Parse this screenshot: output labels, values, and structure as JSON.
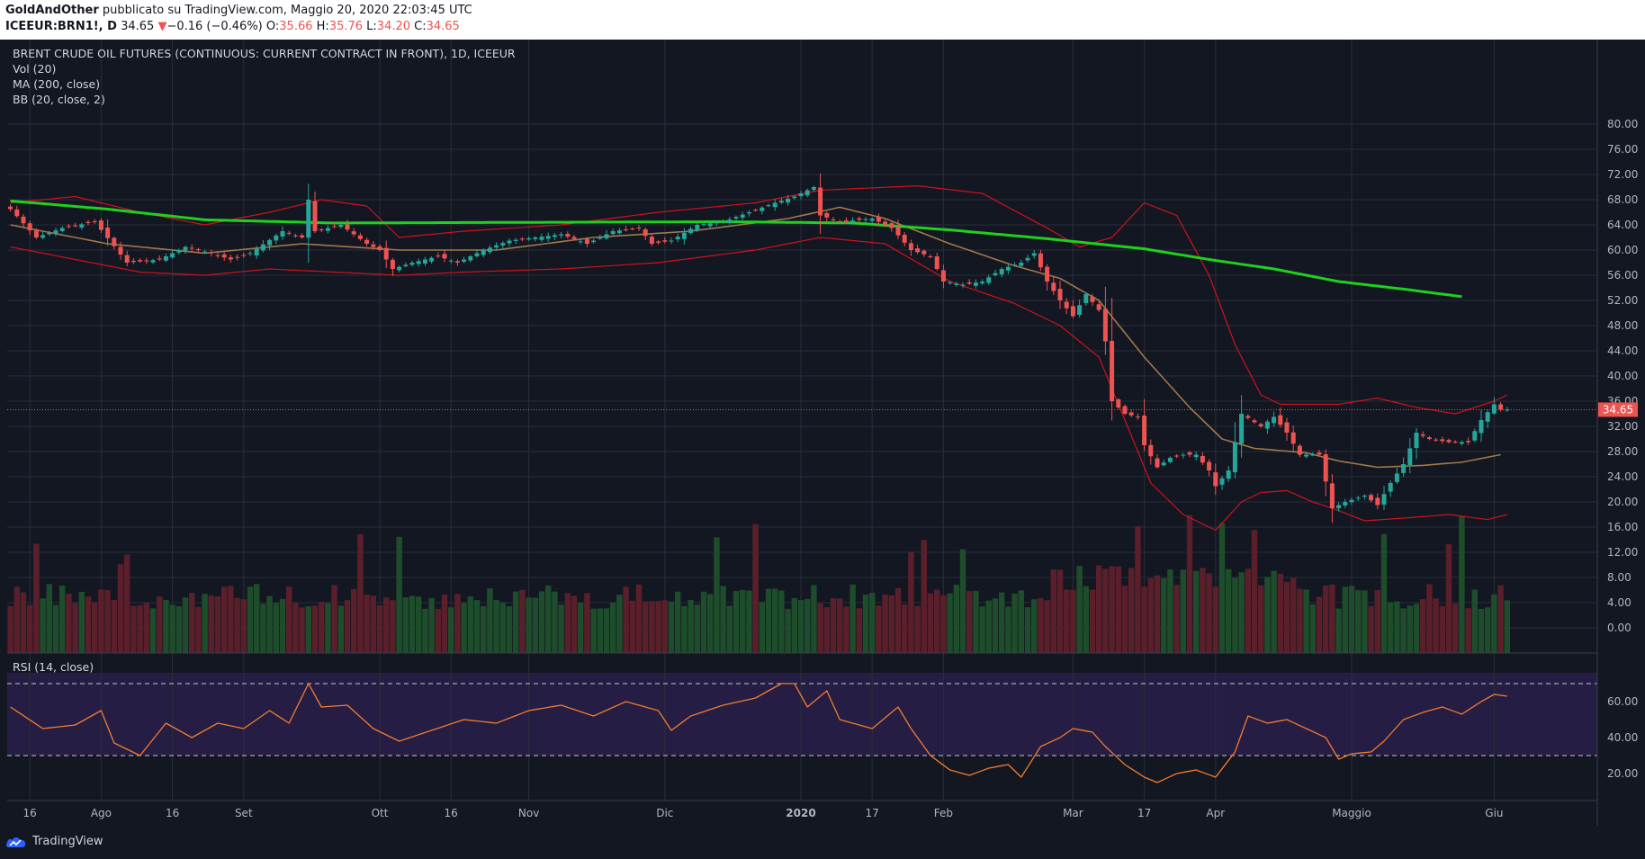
{
  "header": {
    "author": "GoldAndOther",
    "published_text": "pubblicato su TradingView.com, Maggio 20, 2020 22:03:45 UTC",
    "symbol": "ICEEUR:BRN1!, D",
    "last": "34.65",
    "change_arrow": "▼",
    "change": "−0.16 (−0.46%)",
    "ohlc_o_label": "O:",
    "ohlc_o": "35.66",
    "ohlc_h_label": "H:",
    "ohlc_h": "35.76",
    "ohlc_l_label": "L:",
    "ohlc_l": "34.20",
    "ohlc_c_label": "C:",
    "ohlc_c": "34.65"
  },
  "legend": {
    "title": "BRENT CRUDE OIL FUTURES (CONTINUOUS: CURRENT CONTRACT IN FRONT), 1D, ICEEUR",
    "vol": "Vol (20)",
    "ma": "MA (200, close)",
    "bb": "BB (20, close, 2)",
    "rsi": "RSI (14, close)"
  },
  "footer": {
    "brand": "TradingView"
  },
  "colors": {
    "background": "#131722",
    "up": "#26a69a",
    "down": "#ef5350",
    "ma200": "#1fd01f",
    "bb_basis": "#a0784a",
    "bb_bands": "#d0121b",
    "rsi_line": "#f07c2e",
    "rsi_band": "#2a1f4a",
    "price_label": "#ef5350"
  },
  "chart_data": {
    "type": "candlestick",
    "price_axis": {
      "min": 0,
      "max": 80,
      "ticks": [
        "80.00",
        "76.00",
        "72.00",
        "68.00",
        "64.00",
        "60.00",
        "56.00",
        "52.00",
        "48.00",
        "44.00",
        "40.00",
        "36.00",
        "32.00",
        "28.00",
        "24.00",
        "20.00",
        "16.00",
        "12.00",
        "8.00",
        "4.00",
        "0.00"
      ]
    },
    "last_price_label": "34.65",
    "rsi_axis": {
      "ticks": [
        "60.00",
        "40.00",
        "20.00"
      ],
      "upper_band": 70,
      "lower_band": 30
    },
    "time_labels": [
      {
        "label": "16",
        "bar": 3,
        "bold": false
      },
      {
        "label": "Ago",
        "bar": 14,
        "bold": false
      },
      {
        "label": "16",
        "bar": 25,
        "bold": false
      },
      {
        "label": "Set",
        "bar": 36,
        "bold": false
      },
      {
        "label": "Ott",
        "bar": 57,
        "bold": false
      },
      {
        "label": "16",
        "bar": 68,
        "bold": false
      },
      {
        "label": "Nov",
        "bar": 80,
        "bold": false
      },
      {
        "label": "Dic",
        "bar": 101,
        "bold": false
      },
      {
        "label": "2020",
        "bar": 122,
        "bold": true
      },
      {
        "label": "17",
        "bar": 133,
        "bold": false
      },
      {
        "label": "Feb",
        "bar": 144,
        "bold": false
      },
      {
        "label": "Mar",
        "bar": 164,
        "bold": false
      },
      {
        "label": "17",
        "bar": 175,
        "bold": false
      },
      {
        "label": "Apr",
        "bar": 186,
        "bold": false
      },
      {
        "label": "Maggio",
        "bar": 207,
        "bold": false
      },
      {
        "label": "Giu",
        "bar": 229,
        "bold": false
      }
    ],
    "close_anchors": [
      [
        0,
        66.5
      ],
      [
        4,
        62
      ],
      [
        8,
        63.5
      ],
      [
        13,
        64.5
      ],
      [
        18,
        58
      ],
      [
        23,
        58.5
      ],
      [
        27,
        60.5
      ],
      [
        31,
        59.5
      ],
      [
        34,
        58.5
      ],
      [
        37,
        59.5
      ],
      [
        42,
        63
      ],
      [
        45,
        62
      ],
      [
        46,
        68
      ],
      [
        47,
        63
      ],
      [
        51,
        64
      ],
      [
        55,
        61
      ],
      [
        57,
        60
      ],
      [
        59,
        57
      ],
      [
        62,
        58
      ],
      [
        66,
        59
      ],
      [
        69,
        58
      ],
      [
        73,
        60
      ],
      [
        77,
        61.5
      ],
      [
        81,
        62
      ],
      [
        85,
        62.5
      ],
      [
        89,
        61
      ],
      [
        93,
        63
      ],
      [
        97,
        63.5
      ],
      [
        99,
        61
      ],
      [
        102,
        61.5
      ],
      [
        106,
        64
      ],
      [
        110,
        64.5
      ],
      [
        114,
        66
      ],
      [
        118,
        67.5
      ],
      [
        121,
        68.5
      ],
      [
        124,
        70
      ],
      [
        125,
        65.5
      ],
      [
        128,
        64.5
      ],
      [
        133,
        65
      ],
      [
        136,
        63.5
      ],
      [
        139,
        60
      ],
      [
        142,
        59
      ],
      [
        144,
        55
      ],
      [
        147,
        54.5
      ],
      [
        150,
        55
      ],
      [
        153,
        57
      ],
      [
        156,
        58
      ],
      [
        158,
        59.5
      ],
      [
        160,
        55
      ],
      [
        162,
        52
      ],
      [
        164,
        49.5
      ],
      [
        166,
        53
      ],
      [
        168,
        50.5
      ],
      [
        169,
        45.5
      ],
      [
        170,
        36
      ],
      [
        172,
        34
      ],
      [
        174,
        33.5
      ],
      [
        175,
        29
      ],
      [
        177,
        25.5
      ],
      [
        179,
        27
      ],
      [
        181,
        27.5
      ],
      [
        183,
        27.5
      ],
      [
        185,
        25
      ],
      [
        186,
        22.5
      ],
      [
        188,
        25
      ],
      [
        190,
        34
      ],
      [
        193,
        32
      ],
      [
        195,
        33.5
      ],
      [
        197,
        31
      ],
      [
        199,
        27.5
      ],
      [
        202,
        27.5
      ],
      [
        204,
        19
      ],
      [
        206,
        20
      ],
      [
        209,
        21
      ],
      [
        211,
        19.5
      ],
      [
        213,
        23
      ],
      [
        215,
        26
      ],
      [
        217,
        31
      ],
      [
        219,
        30
      ],
      [
        222,
        29.5
      ],
      [
        225,
        29.5
      ],
      [
        227,
        33
      ],
      [
        229,
        35.5
      ],
      [
        230,
        34.65
      ]
    ],
    "ma200_anchors": [
      [
        0,
        67.8
      ],
      [
        15,
        66.5
      ],
      [
        30,
        64.8
      ],
      [
        50,
        64.3
      ],
      [
        80,
        64.4
      ],
      [
        110,
        64.5
      ],
      [
        130,
        64.3
      ],
      [
        145,
        63.2
      ],
      [
        160,
        61.8
      ],
      [
        175,
        60.2
      ],
      [
        185,
        58.5
      ],
      [
        195,
        57
      ],
      [
        205,
        55
      ],
      [
        215,
        53.8
      ],
      [
        224,
        52.6
      ]
    ],
    "bb_basis_anchors": [
      [
        0,
        64
      ],
      [
        15,
        61
      ],
      [
        30,
        59.5
      ],
      [
        45,
        61
      ],
      [
        60,
        60
      ],
      [
        75,
        60
      ],
      [
        90,
        62
      ],
      [
        105,
        63
      ],
      [
        120,
        65
      ],
      [
        128,
        66.8
      ],
      [
        135,
        65
      ],
      [
        145,
        61
      ],
      [
        155,
        57.5
      ],
      [
        162,
        55.5
      ],
      [
        168,
        52
      ],
      [
        175,
        43
      ],
      [
        182,
        35
      ],
      [
        187,
        30
      ],
      [
        192,
        28.5
      ],
      [
        200,
        27.8
      ],
      [
        205,
        26.5
      ],
      [
        211,
        25.5
      ],
      [
        218,
        25.8
      ],
      [
        224,
        26.3
      ],
      [
        230,
        27.5
      ]
    ],
    "bb_upper_anchors": [
      [
        0,
        67.5
      ],
      [
        10,
        68.5
      ],
      [
        20,
        66
      ],
      [
        30,
        64
      ],
      [
        40,
        66
      ],
      [
        48,
        68
      ],
      [
        55,
        67
      ],
      [
        60,
        62
      ],
      [
        70,
        63
      ],
      [
        85,
        64
      ],
      [
        100,
        66
      ],
      [
        115,
        67.5
      ],
      [
        125,
        69.5
      ],
      [
        140,
        70.2
      ],
      [
        150,
        69
      ],
      [
        160,
        63.5
      ],
      [
        165,
        60.5
      ],
      [
        170,
        62
      ],
      [
        175,
        67.5
      ],
      [
        180,
        65.5
      ],
      [
        185,
        56
      ],
      [
        189,
        45
      ],
      [
        193,
        37
      ],
      [
        196,
        35.5
      ],
      [
        205,
        35.5
      ],
      [
        211,
        36.5
      ],
      [
        217,
        35
      ],
      [
        223,
        34
      ],
      [
        229,
        36
      ],
      [
        231,
        37
      ]
    ],
    "bb_lower_anchors": [
      [
        0,
        60.5
      ],
      [
        10,
        58.5
      ],
      [
        20,
        56.5
      ],
      [
        30,
        56
      ],
      [
        40,
        57
      ],
      [
        50,
        56.5
      ],
      [
        60,
        56
      ],
      [
        70,
        56.5
      ],
      [
        85,
        57
      ],
      [
        100,
        58
      ],
      [
        115,
        60
      ],
      [
        125,
        62
      ],
      [
        135,
        61
      ],
      [
        145,
        55
      ],
      [
        155,
        51.5
      ],
      [
        162,
        48
      ],
      [
        168,
        43
      ],
      [
        172,
        33
      ],
      [
        176,
        23
      ],
      [
        181,
        18
      ],
      [
        186,
        15.5
      ],
      [
        190,
        20
      ],
      [
        193,
        21.5
      ],
      [
        197,
        21.8
      ],
      [
        201,
        20
      ],
      [
        204,
        19
      ],
      [
        209,
        17
      ],
      [
        216,
        17.5
      ],
      [
        222,
        18
      ],
      [
        228,
        17.2
      ],
      [
        231,
        18
      ]
    ],
    "rsi_anchors": [
      [
        0,
        57
      ],
      [
        5,
        45
      ],
      [
        10,
        47
      ],
      [
        14,
        55
      ],
      [
        16,
        37
      ],
      [
        20,
        30
      ],
      [
        24,
        48
      ],
      [
        28,
        40
      ],
      [
        32,
        48
      ],
      [
        36,
        45
      ],
      [
        40,
        55
      ],
      [
        43,
        48
      ],
      [
        46,
        70
      ],
      [
        48,
        57
      ],
      [
        52,
        58
      ],
      [
        56,
        45
      ],
      [
        60,
        38
      ],
      [
        65,
        44
      ],
      [
        70,
        50
      ],
      [
        75,
        48
      ],
      [
        80,
        55
      ],
      [
        85,
        58
      ],
      [
        90,
        52
      ],
      [
        95,
        60
      ],
      [
        100,
        55
      ],
      [
        102,
        44
      ],
      [
        105,
        52
      ],
      [
        110,
        58
      ],
      [
        115,
        62
      ],
      [
        119,
        70
      ],
      [
        121,
        70
      ],
      [
        123,
        57
      ],
      [
        126,
        66
      ],
      [
        128,
        50
      ],
      [
        133,
        45
      ],
      [
        137,
        57
      ],
      [
        139,
        45
      ],
      [
        142,
        30
      ],
      [
        145,
        22
      ],
      [
        148,
        19
      ],
      [
        151,
        23
      ],
      [
        154,
        25
      ],
      [
        156,
        18
      ],
      [
        159,
        35
      ],
      [
        162,
        40
      ],
      [
        164,
        45
      ],
      [
        167,
        43
      ],
      [
        169,
        35
      ],
      [
        172,
        25
      ],
      [
        175,
        18
      ],
      [
        177,
        15
      ],
      [
        180,
        20
      ],
      [
        183,
        22
      ],
      [
        186,
        18
      ],
      [
        189,
        32
      ],
      [
        191,
        52
      ],
      [
        194,
        48
      ],
      [
        197,
        50
      ],
      [
        200,
        45
      ],
      [
        203,
        40
      ],
      [
        205,
        28
      ],
      [
        207,
        31
      ],
      [
        210,
        32
      ],
      [
        212,
        38
      ],
      [
        215,
        50
      ],
      [
        218,
        54
      ],
      [
        221,
        57
      ],
      [
        224,
        53
      ],
      [
        227,
        60
      ],
      [
        229,
        64
      ],
      [
        231,
        63
      ]
    ],
    "volume_axis": {
      "min": 0,
      "max": 80
    },
    "series": [
      {
        "name": "MA (200, close)",
        "role": "ma200"
      },
      {
        "name": "BB (20, close, 2)",
        "role": "bollinger"
      },
      {
        "name": "Vol (20)",
        "role": "volume"
      },
      {
        "name": "RSI (14, close)",
        "role": "rsi"
      }
    ]
  }
}
